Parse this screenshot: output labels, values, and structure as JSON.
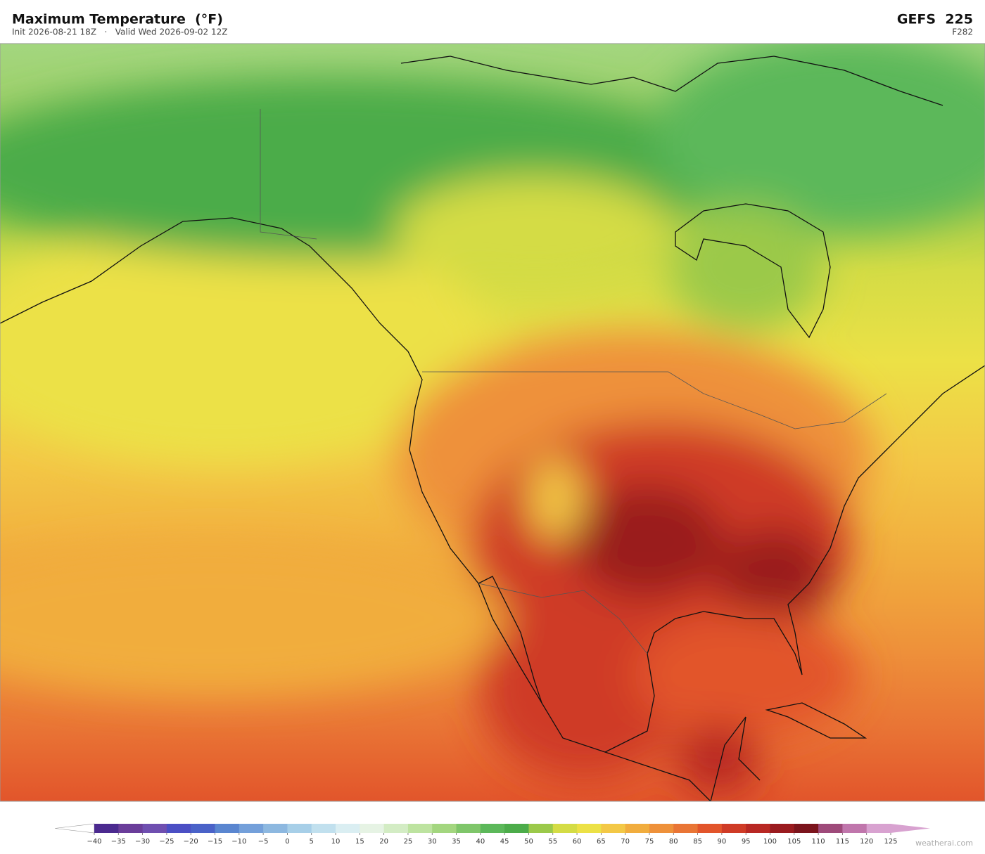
{
  "header": {
    "title": "Maximum Temperature  (°F)",
    "subtitle": "Init 2026-08-21 18Z   ·   Valid Wed 2026-09-02 12Z",
    "model": "GEFS  225",
    "step": "F282"
  },
  "colorbar": {
    "ticks": [
      {
        "value": -40,
        "label": "−40"
      },
      {
        "value": -35,
        "label": "−35"
      },
      {
        "value": -30,
        "label": "−30"
      },
      {
        "value": -25,
        "label": "−25"
      },
      {
        "value": -20,
        "label": "−20"
      },
      {
        "value": -15,
        "label": "−15"
      },
      {
        "value": -10,
        "label": "−10"
      },
      {
        "value": -5,
        "label": "−5"
      },
      0,
      5,
      10,
      15,
      20,
      25,
      30,
      35,
      40,
      45,
      50,
      55,
      60,
      65,
      70,
      75,
      80,
      85,
      90,
      95,
      100,
      105,
      110,
      115,
      120,
      125
    ],
    "colors": [
      "#4b2a8f",
      "#6a3d9a",
      "#6f4fb0",
      "#4b4fc4",
      "#4a62c8",
      "#5a86d0",
      "#74a0da",
      "#8db8e0",
      "#a7cfe8",
      "#c1e0ee",
      "#daeef2",
      "#e6f3e4",
      "#d3ecc4",
      "#bde3a0",
      "#a3d67f",
      "#7fc66a",
      "#5cb85a",
      "#4cac4a",
      "#9bc94a",
      "#d4dc45",
      "#ece146",
      "#f3c846",
      "#f1ad3e",
      "#ee913a",
      "#e97535",
      "#e2552b",
      "#cf3b26",
      "#b82823",
      "#9a1b1f",
      "#7b141c",
      "#9e4a7a",
      "#c076ac",
      "#d8a2d0"
    ]
  },
  "footer": {
    "watermark": "weatherai.com"
  }
}
